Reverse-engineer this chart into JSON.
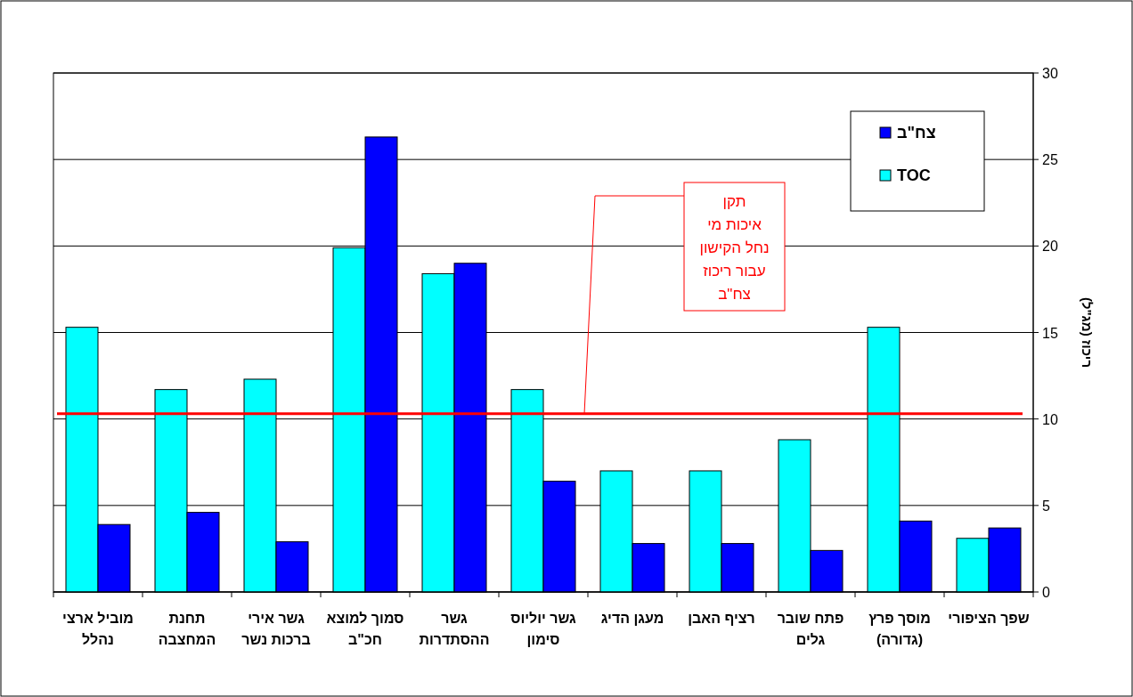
{
  "chart_data": {
    "type": "bar",
    "ylabel": "ריכוז (מג\"ל)",
    "categories": [
      "מוביל ארצי נהלל",
      "תחנת המחצבה",
      "גשר אירי ברכות נשר",
      "סמוך למוצא חכ\"ב",
      "גשר ההסתדרות",
      "גשר יוליוס סימון",
      "מעגן הדיג",
      "רציף האבן",
      "פתח שובר גלים",
      "מוסך פרץ (גדורה)",
      "שפך הציפורי"
    ],
    "series": [
      {
        "name": "TOC",
        "color": "#00ffff",
        "values": [
          15.3,
          11.7,
          12.3,
          19.9,
          18.4,
          11.7,
          7.0,
          7.0,
          8.8,
          15.3,
          3.1
        ]
      },
      {
        "name": "צח\"ב",
        "color": "#0000ff",
        "values": [
          3.9,
          4.6,
          2.9,
          26.3,
          19.0,
          6.4,
          2.8,
          2.8,
          2.4,
          4.1,
          3.7
        ]
      }
    ],
    "ylim": [
      0,
      30
    ],
    "yticks": [
      0,
      5,
      10,
      15,
      20,
      25,
      30
    ],
    "grid": "y",
    "legend": "top right",
    "ref_lines": [
      {
        "axis": "y",
        "value": 10.3,
        "label": "תקן\nאיכות מי\nנחל הקישון\nעבור ריכוז\nצח\"ב",
        "color": "#ff0000"
      }
    ]
  }
}
